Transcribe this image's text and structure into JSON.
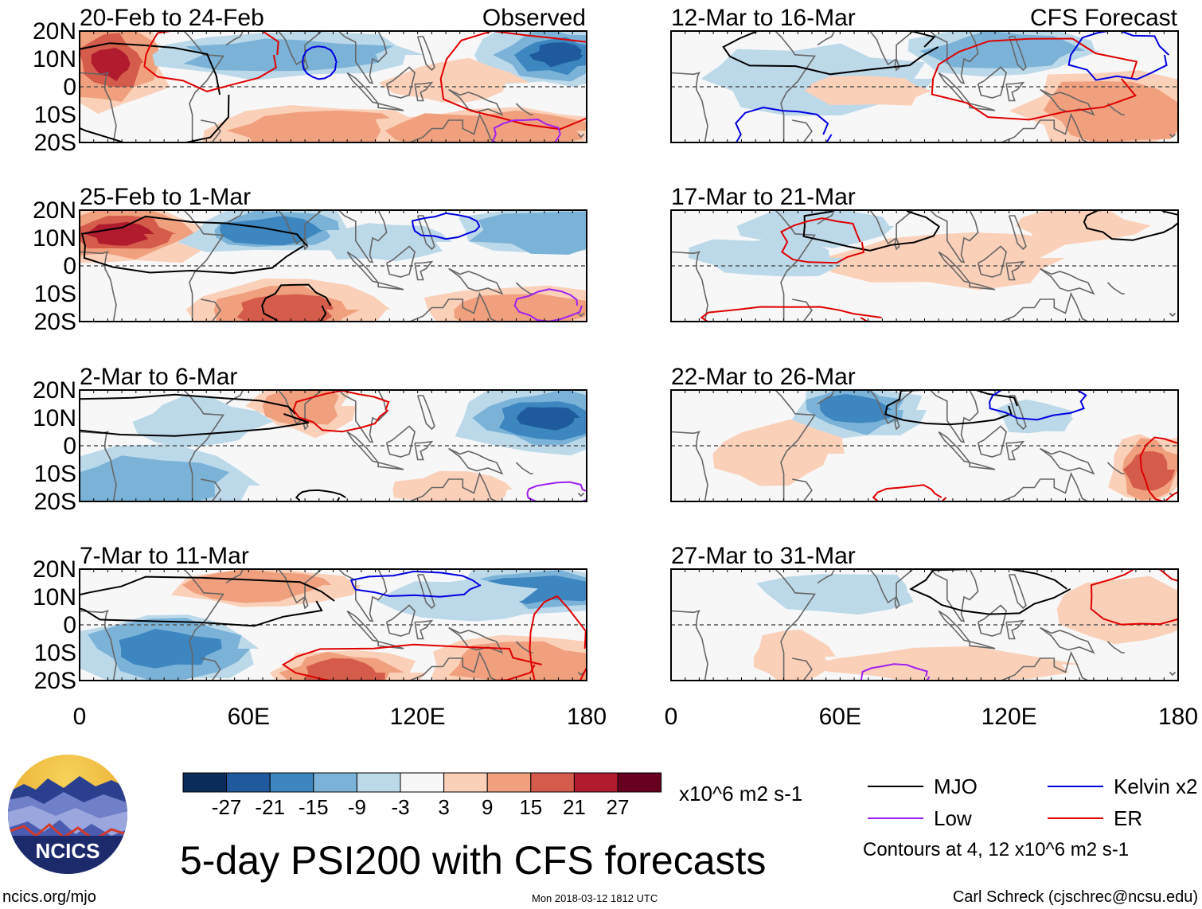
{
  "chart_data": {
    "type": "heatmap",
    "title": "5-day PSI200 with CFS forecasts",
    "variable": "PSI200",
    "units": "x10^6 m2 s-1",
    "x_axis": {
      "range": [
        0,
        180
      ],
      "ticks": [
        "0",
        "60E",
        "120E",
        "180"
      ]
    },
    "y_axis": {
      "range": [
        -20,
        20
      ],
      "ticks": [
        "20N",
        "10N",
        "0",
        "10S",
        "20S"
      ]
    },
    "columns": [
      {
        "name": "observed",
        "label": "Observed",
        "panels": [
          {
            "period": "20-Feb to 24-Feb"
          },
          {
            "period": "25-Feb to 1-Mar"
          },
          {
            "period": "2-Mar to 6-Mar"
          },
          {
            "period": "7-Mar to 11-Mar"
          }
        ]
      },
      {
        "name": "forecast",
        "label": "CFS Forecast",
        "panels": [
          {
            "period": "12-Mar to 16-Mar"
          },
          {
            "period": "17-Mar to 21-Mar"
          },
          {
            "period": "22-Mar to 26-Mar"
          },
          {
            "period": "27-Mar to 31-Mar"
          }
        ]
      }
    ],
    "colorbar": {
      "levels": [
        "-27",
        "-21",
        "-15",
        "-9",
        "-3",
        "3",
        "9",
        "15",
        "21",
        "27"
      ],
      "colors": [
        "#0b2c5b",
        "#1f5a9e",
        "#3d86c0",
        "#7bb3d8",
        "#bcd9ea",
        "#f7f7f7",
        "#fbd0b9",
        "#f0a07d",
        "#d55c4a",
        "#b01c2e",
        "#67001f"
      ]
    },
    "contour_note": "Contours at 4, 12 x10^6 m2 s-1",
    "legend": [
      {
        "name": "MJO",
        "color": "#000000"
      },
      {
        "name": "Kelvin x2",
        "color": "#0000e0"
      },
      {
        "name": "Low",
        "color": "#a020f0"
      },
      {
        "name": "ER",
        "color": "#e00000"
      }
    ]
  },
  "footer": {
    "logo_text": "NCICS",
    "url": "ncics.org/mjo",
    "timestamp": "Mon 2018-03-12 1812 UTC",
    "author": "Carl Schreck (cjschrec@ncsu.edu)"
  }
}
